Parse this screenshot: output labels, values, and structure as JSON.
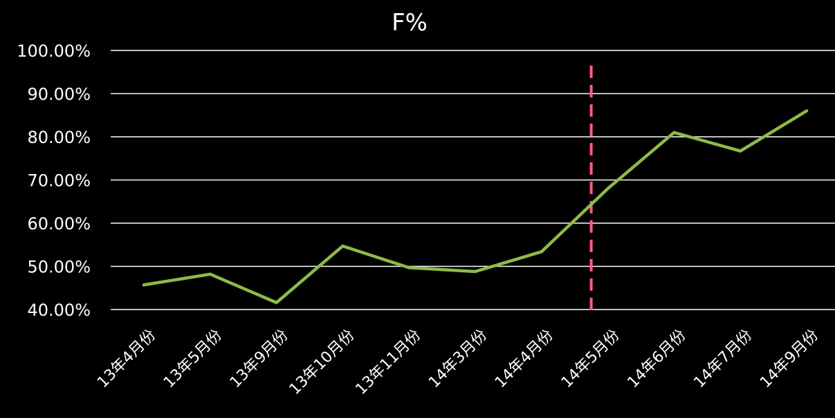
{
  "chart_data": {
    "type": "line",
    "title": "F%",
    "xlabel": "",
    "ylabel": "",
    "categories": [
      "13年4月份",
      "13年5月份",
      "13年9月份",
      "13年10月份",
      "13年11月份",
      "14年3月份",
      "14年4月份",
      "14年5月份",
      "14年6月份",
      "14年7月份",
      "14年9月份"
    ],
    "series": [
      {
        "values": [
          45.7,
          48.2,
          41.6,
          54.7,
          49.7,
          48.8,
          53.4,
          68.0,
          81.0,
          76.7,
          86.0
        ]
      }
    ],
    "ylim": [
      40,
      100
    ],
    "yticks": [
      "40.00%",
      "50.00%",
      "60.00%",
      "70.00%",
      "80.00%",
      "90.00%",
      "100.00%"
    ],
    "grid": true,
    "legend": "none",
    "marker": {
      "category": "14年5月份",
      "style": "dashed-vertical"
    },
    "colors": {
      "background": "#000000",
      "text": "#ffffff",
      "grid": "#ffffff",
      "series": "#8dbb48",
      "marker": "#ff5c8a"
    }
  }
}
